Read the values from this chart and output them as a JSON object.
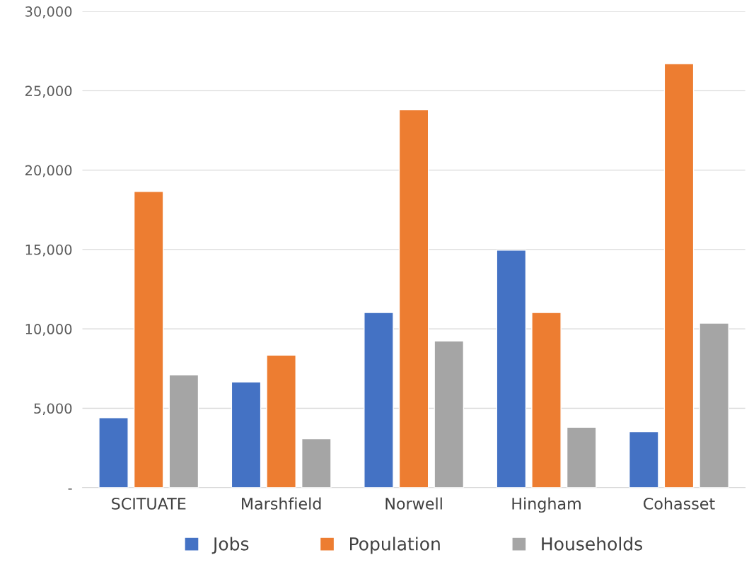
{
  "chart_data": {
    "type": "bar",
    "categories": [
      "SCITUATE",
      "Marshfield",
      "Norwell",
      "Hingham",
      "Cohasset"
    ],
    "series": [
      {
        "name": "Jobs",
        "color": "#4472c4",
        "values": [
          4400,
          6650,
          11030,
          14960,
          3530
        ]
      },
      {
        "name": "Population",
        "color": "#ed7d31",
        "values": [
          18650,
          8350,
          23800,
          11030,
          26700
        ]
      },
      {
        "name": "Households",
        "color": "#a5a5a5",
        "values": [
          7100,
          3080,
          9240,
          3800,
          10360
        ]
      }
    ],
    "ylim": [
      0,
      30000
    ],
    "yticks": [
      {
        "value": 0,
        "label": "-"
      },
      {
        "value": 5000,
        "label": "5,000"
      },
      {
        "value": 10000,
        "label": "10,000"
      },
      {
        "value": 15000,
        "label": "15,000"
      },
      {
        "value": 20000,
        "label": "20,000"
      },
      {
        "value": 25000,
        "label": "25,000"
      },
      {
        "value": 30000,
        "label": "30,000"
      }
    ],
    "grid": "y",
    "legend": "bottom"
  }
}
